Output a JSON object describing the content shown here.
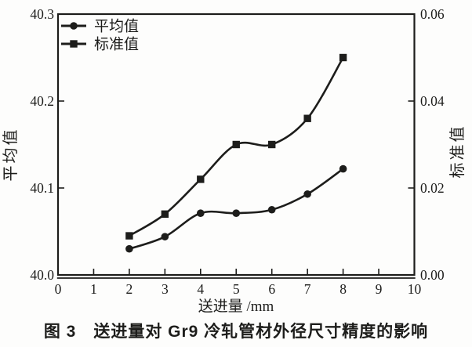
{
  "figure": {
    "caption": "图 3　送进量对 Gr9 冷轧管材外径尺寸精度的影响"
  },
  "colors": {
    "ink": "#1d1d1b",
    "background": "#fdfdfc"
  },
  "chart_data": {
    "type": "line",
    "title": "",
    "xlabel": "送进量 /mm",
    "grid": false,
    "legend_position": "top-left",
    "x": [
      2,
      3,
      4,
      5,
      6,
      7,
      8
    ],
    "x_axis": {
      "min": 0,
      "max": 10,
      "tick_values": [
        0,
        1,
        2,
        3,
        4,
        5,
        6,
        7,
        8,
        9,
        10
      ],
      "tick_labels": [
        "0",
        "1",
        "2",
        "3",
        "4",
        "5",
        "6",
        "7",
        "8",
        "9",
        "10"
      ]
    },
    "left_axis": {
      "label": "平均值",
      "min": 40.0,
      "max": 40.3,
      "tick_values": [
        40.0,
        40.1,
        40.2,
        40.3
      ],
      "tick_labels": [
        "40.0",
        "40.1",
        "40.2",
        "40.3"
      ]
    },
    "right_axis": {
      "label": "标准值",
      "min": 0.0,
      "max": 0.06,
      "tick_values": [
        0.0,
        0.02,
        0.04,
        0.06
      ],
      "tick_labels": [
        "0.00",
        "0.02",
        "0.04",
        "0.06"
      ]
    },
    "series": [
      {
        "name": "平均值",
        "axis": "left",
        "marker": "circle",
        "values": [
          40.03,
          40.044,
          40.071,
          40.071,
          40.075,
          40.093,
          40.122
        ]
      },
      {
        "name": "标准值",
        "axis": "right",
        "marker": "square",
        "values": [
          0.009,
          0.014,
          0.022,
          0.03,
          0.03,
          0.036,
          0.05
        ]
      }
    ]
  }
}
